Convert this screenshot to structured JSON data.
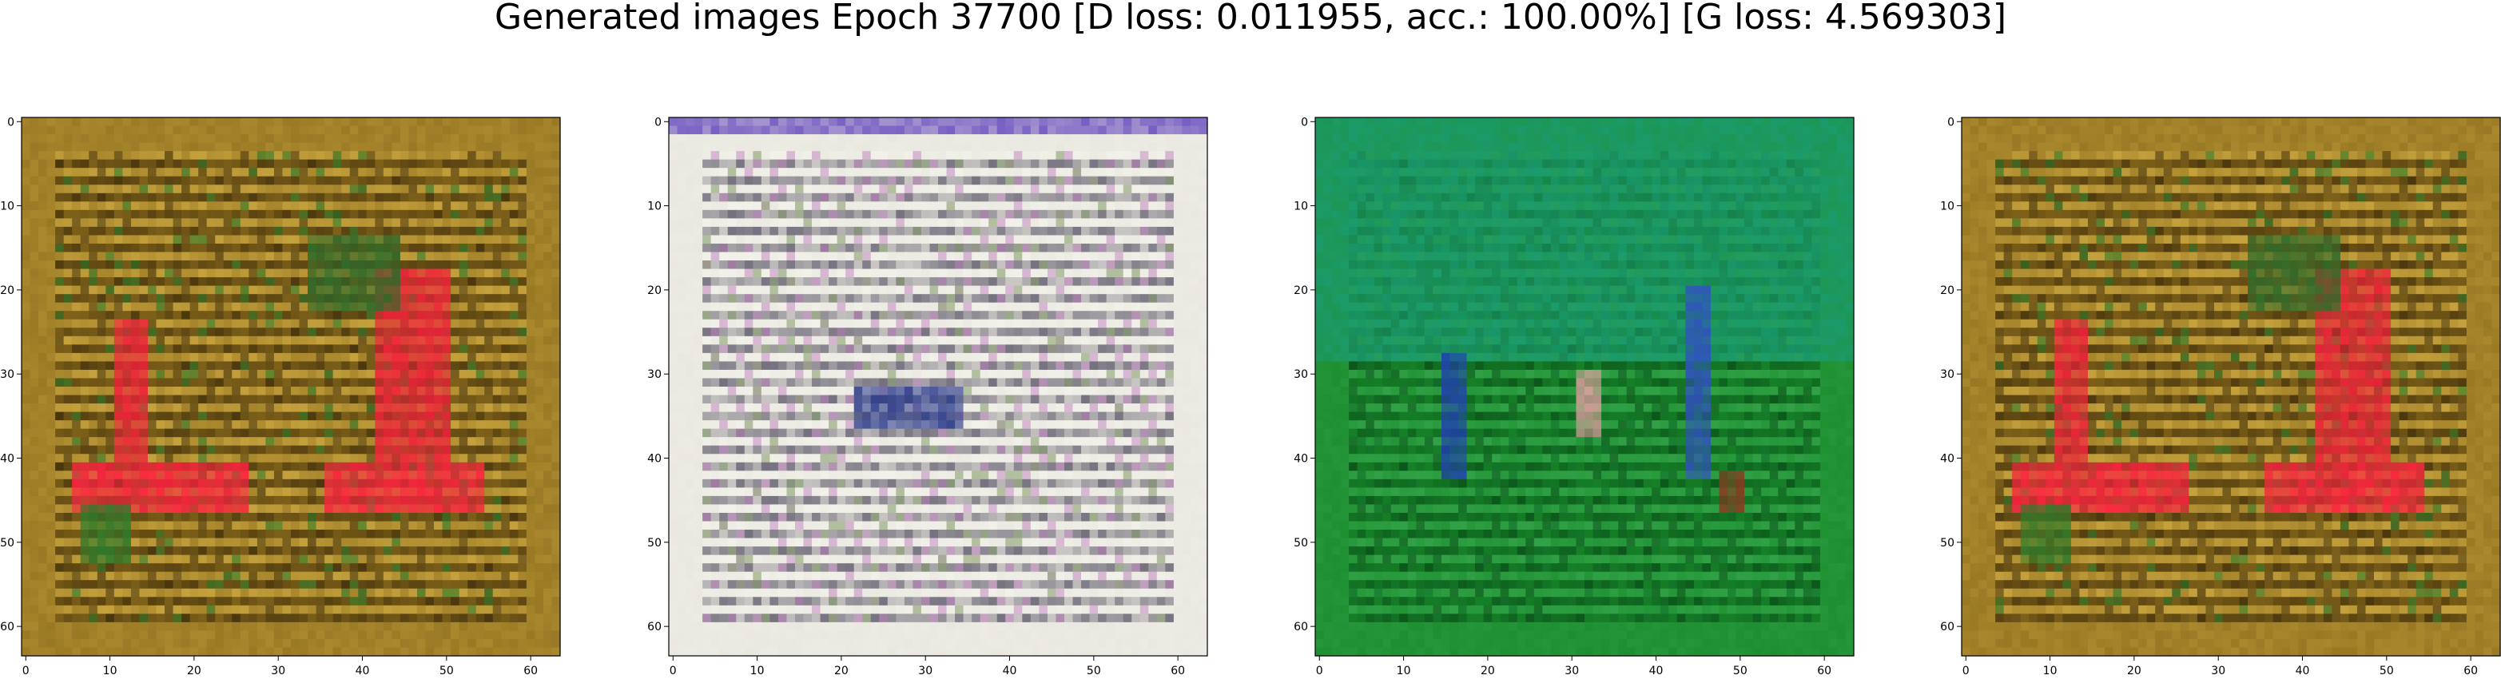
{
  "figure": {
    "title": "Generated images Epoch 37700 [D loss: 0.011955, acc.: 100.00%] [G loss: 4.569303]"
  },
  "chart_data": [
    {
      "type": "heatmap",
      "description": "generated image",
      "xlim": [
        0,
        63
      ],
      "ylim": [
        63,
        0
      ],
      "xticks": [
        0,
        10,
        20,
        30,
        40,
        50,
        60
      ],
      "yticks": [
        0,
        10,
        20,
        30,
        40,
        50,
        60
      ],
      "palette": {
        "background": "#8a6a1c",
        "stripe": "#d8b448",
        "dark": "#3a2a0a",
        "accent": "#f2203a",
        "green": "#2e7a2a"
      },
      "blobs": [
        {
          "x": [
            11,
            14
          ],
          "y": [
            24,
            40
          ],
          "color": "#f2203a"
        },
        {
          "x": [
            42,
            50
          ],
          "y": [
            18,
            40
          ],
          "color": "#f2203a"
        },
        {
          "x": [
            6,
            26
          ],
          "y": [
            41,
            46
          ],
          "color": "#ff2040"
        },
        {
          "x": [
            36,
            54
          ],
          "y": [
            41,
            46
          ],
          "color": "#ff2040"
        },
        {
          "x": [
            7,
            12
          ],
          "y": [
            46,
            52
          ],
          "color": "#2e7a2a"
        },
        {
          "x": [
            34,
            44
          ],
          "y": [
            14,
            22
          ],
          "color": "#2e6a2a"
        }
      ]
    },
    {
      "type": "heatmap",
      "description": "generated image",
      "xlim": [
        0,
        63
      ],
      "ylim": [
        63,
        0
      ],
      "xticks": [
        0,
        10,
        20,
        30,
        40,
        50,
        60
      ],
      "yticks": [
        0,
        10,
        20,
        30,
        40,
        50,
        60
      ],
      "palette": {
        "background": "#e6e4dc",
        "stripe": "#f6f6ee",
        "dark": "#2a2440",
        "accent": "#c080c0",
        "green": "#8aa070"
      },
      "blobs": [
        {
          "x": [
            0,
            63
          ],
          "y": [
            0,
            1.5
          ],
          "color": "#6a50c0"
        },
        {
          "x": [
            22,
            34
          ],
          "y": [
            32,
            36
          ],
          "color": "#2a3a8a"
        }
      ]
    },
    {
      "type": "heatmap",
      "description": "generated image",
      "xlim": [
        0,
        63
      ],
      "ylim": [
        63,
        0
      ],
      "xticks": [
        0,
        10,
        20,
        30,
        40,
        50,
        60
      ],
      "yticks": [
        0,
        10,
        20,
        30,
        40,
        50,
        60
      ],
      "palette": {
        "background": "#178a2a",
        "stripe": "#3aa850",
        "dark": "#0a4a18",
        "accent": "#1a8a8a",
        "green": "#10702a"
      },
      "blobs": [
        {
          "x": [
            0,
            63
          ],
          "y": [
            0,
            28
          ],
          "color": "#1a9a70"
        },
        {
          "x": [
            15,
            17
          ],
          "y": [
            28,
            42
          ],
          "color": "#2040b0"
        },
        {
          "x": [
            31,
            33
          ],
          "y": [
            30,
            37
          ],
          "color": "#e0a0a0"
        },
        {
          "x": [
            44,
            46
          ],
          "y": [
            20,
            42
          ],
          "color": "#3050c0"
        },
        {
          "x": [
            48,
            50
          ],
          "y": [
            42,
            46
          ],
          "color": "#8a3a20"
        }
      ]
    },
    {
      "type": "heatmap",
      "description": "generated image",
      "xlim": [
        0,
        63
      ],
      "ylim": [
        63,
        0
      ],
      "xticks": [
        0,
        10,
        20,
        30,
        40,
        50,
        60
      ],
      "yticks": [
        0,
        10,
        20,
        30,
        40,
        50,
        60
      ],
      "palette": {
        "background": "#8a6a1c",
        "stripe": "#d8b448",
        "dark": "#3a2a0a",
        "accent": "#f2203a",
        "green": "#2e7a2a"
      },
      "blobs": [
        {
          "x": [
            11,
            14
          ],
          "y": [
            24,
            40
          ],
          "color": "#f2203a"
        },
        {
          "x": [
            42,
            50
          ],
          "y": [
            18,
            40
          ],
          "color": "#f2203a"
        },
        {
          "x": [
            6,
            26
          ],
          "y": [
            41,
            46
          ],
          "color": "#ff2040"
        },
        {
          "x": [
            36,
            54
          ],
          "y": [
            41,
            46
          ],
          "color": "#ff2040"
        },
        {
          "x": [
            7,
            12
          ],
          "y": [
            46,
            52
          ],
          "color": "#2e7a2a"
        },
        {
          "x": [
            34,
            44
          ],
          "y": [
            14,
            22
          ],
          "color": "#2e6a2a"
        }
      ]
    }
  ]
}
